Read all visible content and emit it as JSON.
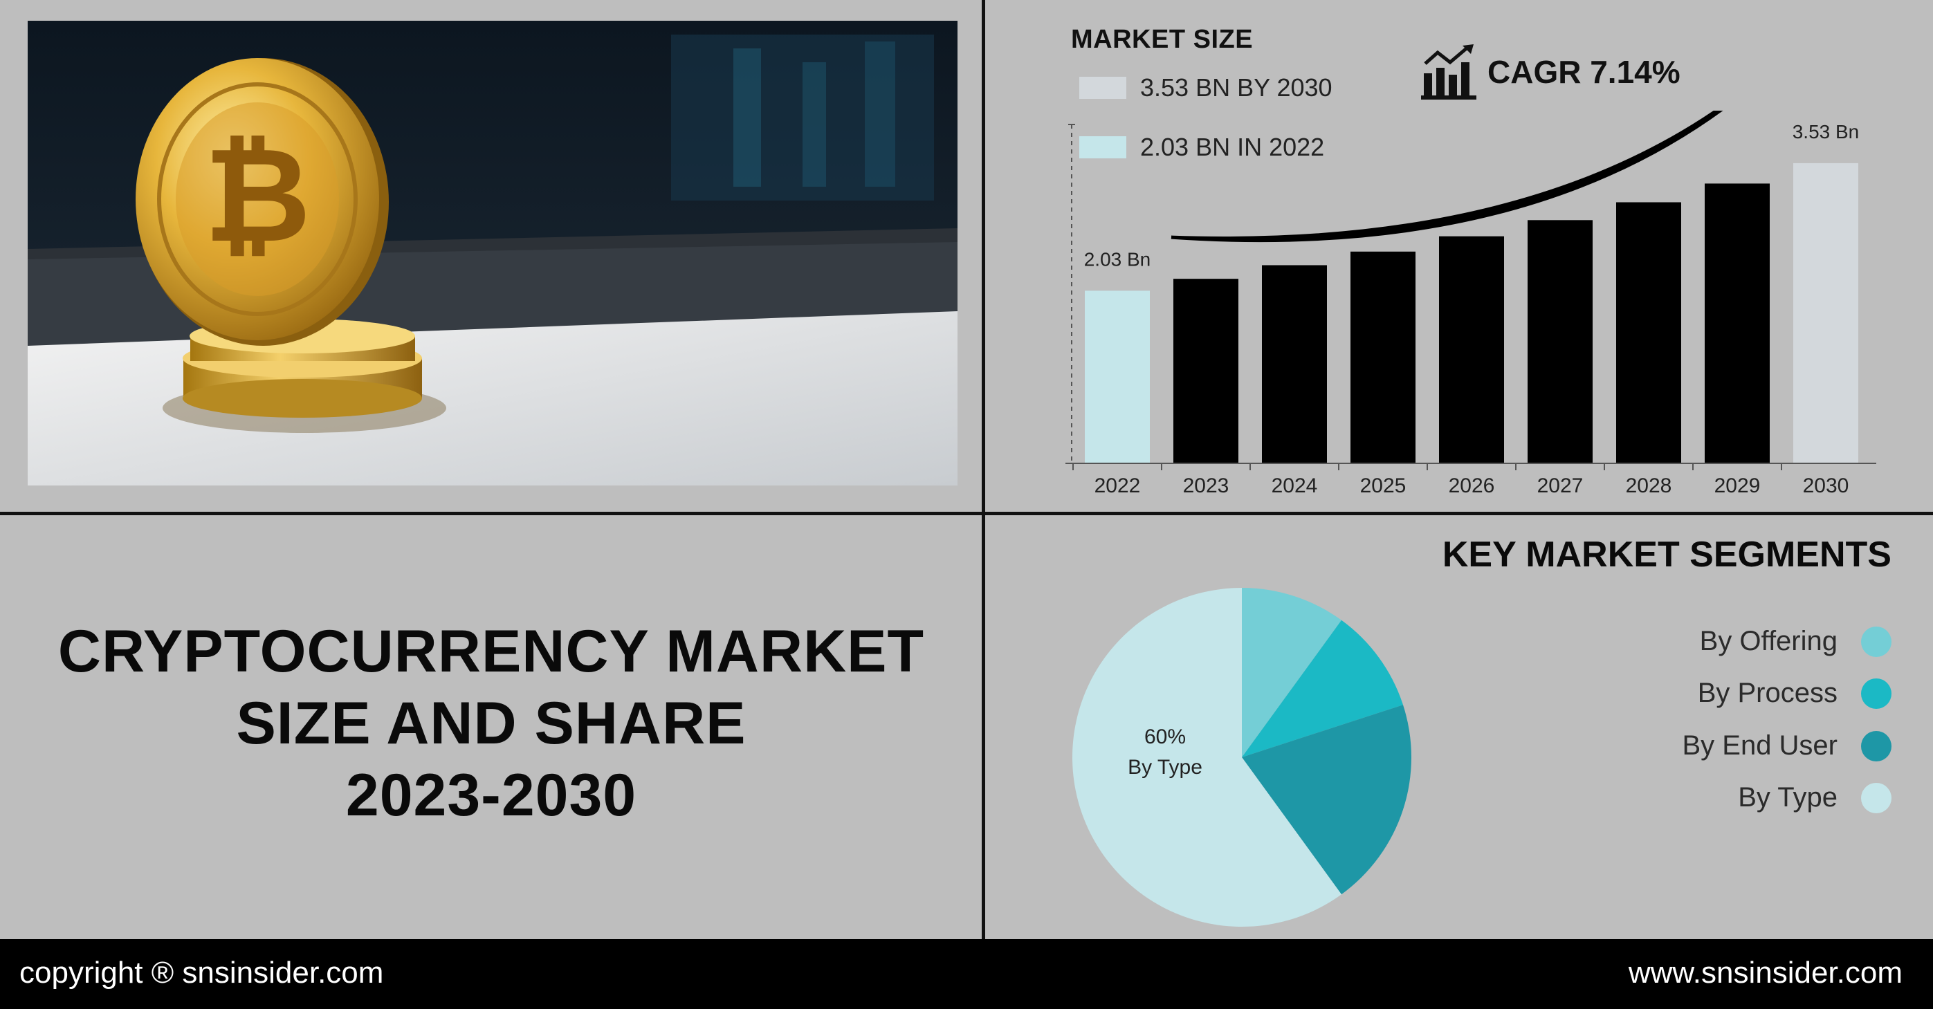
{
  "title": {
    "line1": "CRYPTOCURRENCY MARKET",
    "line2": "SIZE AND SHARE",
    "line3": "2023-2030"
  },
  "market_size": {
    "heading": "MARKET SIZE",
    "legend_2030": "3.53 BN BY 2030",
    "legend_2022": "2.03 BN IN 2022",
    "cagr": "CAGR 7.14%",
    "cagr_icon": "growth-chart-icon"
  },
  "segments": {
    "heading": "KEY MARKET SEGMENTS",
    "items": [
      {
        "label": "By Offering",
        "color": "#74ced6"
      },
      {
        "label": "By Process",
        "color": "#1bb9c5"
      },
      {
        "label": "By End User",
        "color": "#1e97a6"
      },
      {
        "label": "By Type",
        "color": "#c5e6ea"
      }
    ]
  },
  "footer": {
    "copyright": "copyright ® snsinsider.com",
    "website": "www.snsinsider.com"
  },
  "colors": {
    "background": "#bebebe",
    "bar_highlight_start": "#c5e6ea",
    "bar_highlight_end": "#d3d8dc",
    "bar_normal": "#000000"
  },
  "chart_data": [
    {
      "type": "bar",
      "categories": [
        "2022",
        "2023",
        "2024",
        "2025",
        "2026",
        "2027",
        "2028",
        "2029",
        "2030"
      ],
      "values": [
        2.03,
        2.17,
        2.33,
        2.49,
        2.67,
        2.86,
        3.07,
        3.29,
        3.53
      ],
      "data_labels": {
        "2022": "2.03 Bn",
        "2030": "3.53 Bn"
      },
      "title": "MARKET SIZE",
      "xlabel": "",
      "ylabel": "",
      "ylim": [
        0,
        3.7
      ],
      "grid": false
    },
    {
      "type": "pie",
      "labels": [
        "By Offering",
        "By Process",
        "By End User",
        "By Type"
      ],
      "values": [
        10,
        10,
        20,
        60
      ],
      "slice_label": {
        "value": "60%",
        "name": "By Type"
      },
      "legend": "right"
    }
  ]
}
